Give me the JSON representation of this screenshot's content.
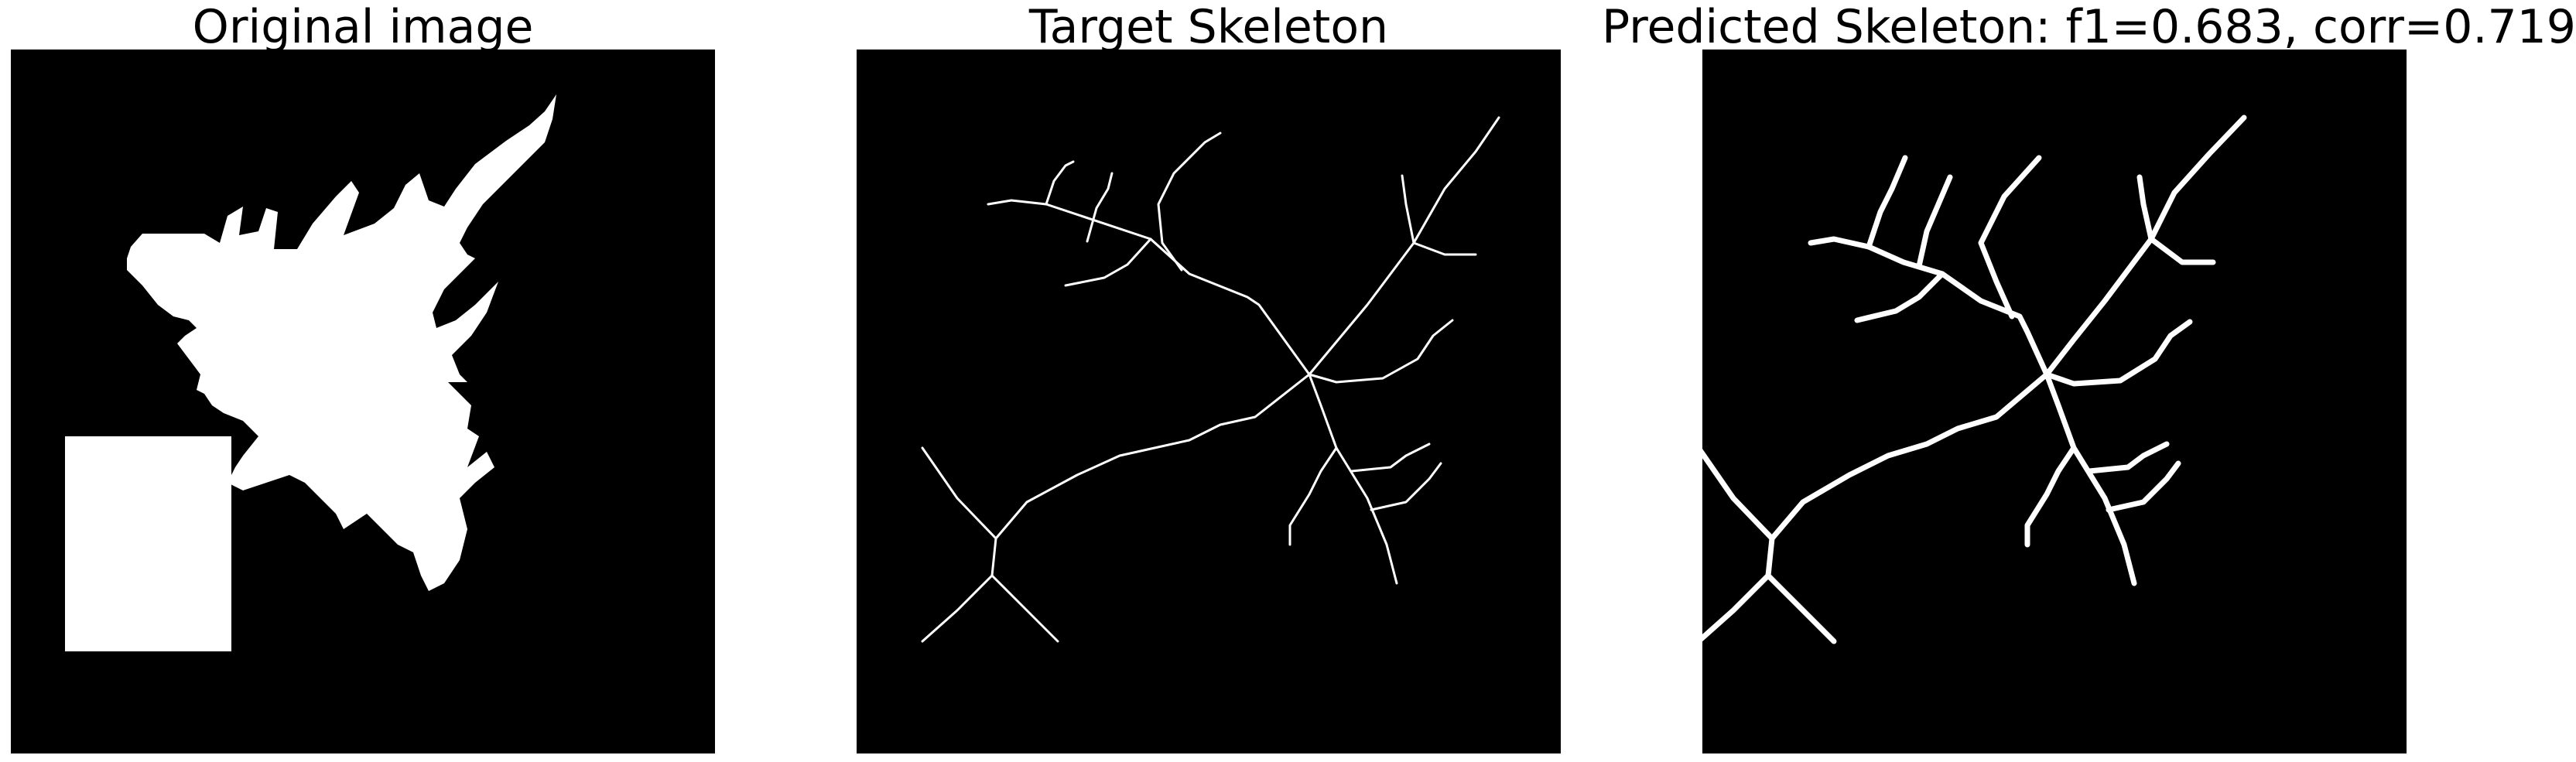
{
  "panels": [
    {
      "title": "Original image"
    },
    {
      "title": "Target Skeleton"
    },
    {
      "title": "Predicted Skeleton: f1=0.683, corr=0.719"
    }
  ],
  "colors": {
    "background": "#000000",
    "foreground": "#ffffff",
    "page": "#ffffff"
  }
}
